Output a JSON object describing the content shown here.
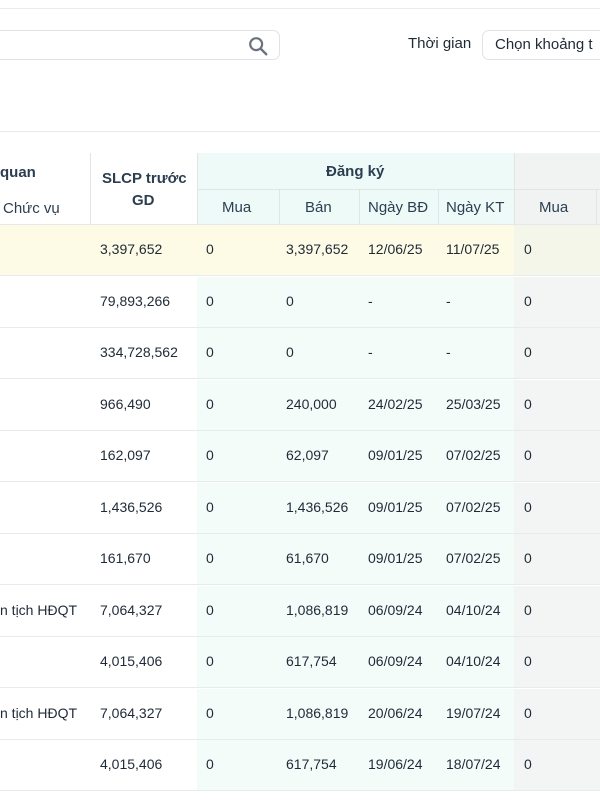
{
  "filters": {
    "time_label": "Thời gian",
    "range_placeholder": "Chọn khoảng t"
  },
  "table": {
    "headers": {
      "related_frag": "quan",
      "position_label": "Chức vụ",
      "slcp_line1": "SLCP trước",
      "slcp_line2": "GD",
      "registration": "Đăng ký",
      "buy": "Mua",
      "sell": "Bán",
      "start_date": "Ngày BĐ",
      "end_date": "Ngày KT",
      "buy_actual": "Mua"
    },
    "rows": [
      {
        "position": "",
        "slcp": "3,397,652",
        "buy": "0",
        "sell": "3,397,652",
        "start": "12/06/25",
        "end": "11/07/25",
        "buy2": "0",
        "highlight": true
      },
      {
        "position": "",
        "slcp": "79,893,266",
        "buy": "0",
        "sell": "0",
        "start": "-",
        "end": "-",
        "buy2": "0"
      },
      {
        "position": "",
        "slcp": "334,728,562",
        "buy": "0",
        "sell": "0",
        "start": "-",
        "end": "-",
        "buy2": "0"
      },
      {
        "position": "",
        "slcp": "966,490",
        "buy": "0",
        "sell": "240,000",
        "start": "24/02/25",
        "end": "25/03/25",
        "buy2": "0"
      },
      {
        "position": "",
        "slcp": "162,097",
        "buy": "0",
        "sell": "62,097",
        "start": "09/01/25",
        "end": "07/02/25",
        "buy2": "0"
      },
      {
        "position": "",
        "slcp": "1,436,526",
        "buy": "0",
        "sell": "1,436,526",
        "start": "09/01/25",
        "end": "07/02/25",
        "buy2": "0"
      },
      {
        "position": "",
        "slcp": "161,670",
        "buy": "0",
        "sell": "61,670",
        "start": "09/01/25",
        "end": "07/02/25",
        "buy2": "0"
      },
      {
        "position": "n tịch HĐQT",
        "slcp": "7,064,327",
        "buy": "0",
        "sell": "1,086,819",
        "start": "06/09/24",
        "end": "04/10/24",
        "buy2": "0"
      },
      {
        "position": "",
        "slcp": "4,015,406",
        "buy": "0",
        "sell": "617,754",
        "start": "06/09/24",
        "end": "04/10/24",
        "buy2": "0"
      },
      {
        "position": "n tịch HĐQT",
        "slcp": "7,064,327",
        "buy": "0",
        "sell": "1,086,819",
        "start": "20/06/24",
        "end": "19/07/24",
        "buy2": "0"
      },
      {
        "position": "",
        "slcp": "4,015,406",
        "buy": "0",
        "sell": "617,754",
        "start": "19/06/24",
        "end": "18/07/24",
        "buy2": "0"
      }
    ]
  }
}
